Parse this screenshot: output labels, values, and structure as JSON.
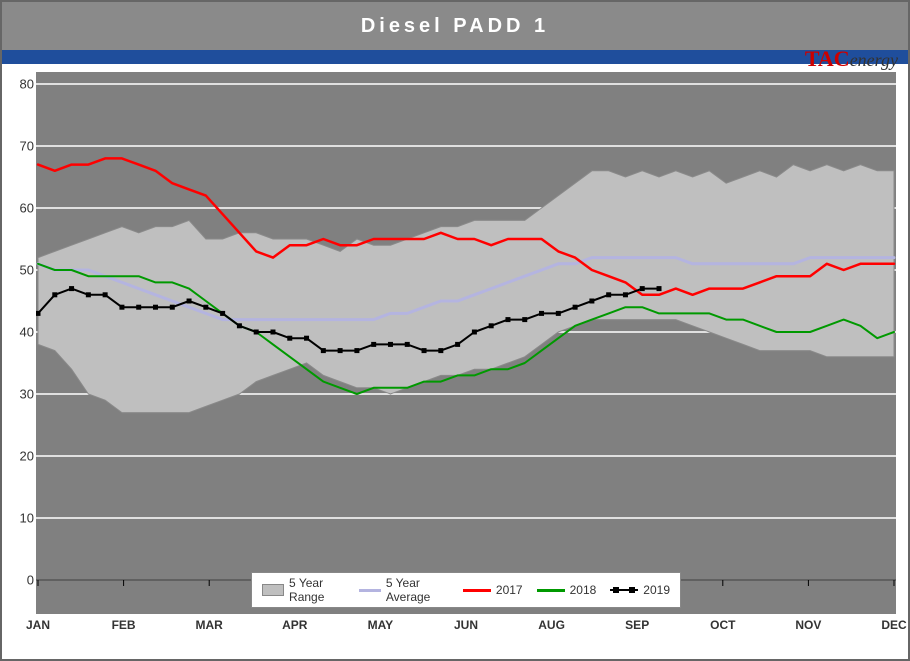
{
  "title": "Diesel PADD 1",
  "logo": {
    "red": "TAC",
    "rest": "energy"
  },
  "chart": {
    "type": "line-area",
    "background_color": "#808080",
    "grid_color": "#ffffff",
    "ylim": [
      0,
      80
    ],
    "ytick_step": 10,
    "yticks": [
      0,
      10,
      20,
      30,
      40,
      50,
      60,
      70,
      80
    ],
    "x_categories": [
      "JAN",
      "FEB",
      "MAR",
      "APR",
      "MAY",
      "JUN",
      "AUG",
      "SEP",
      "OCT",
      "NOV",
      "DEC"
    ],
    "n_weeks": 52,
    "range_upper": [
      52,
      53,
      54,
      55,
      56,
      57,
      56,
      57,
      57,
      58,
      55,
      55,
      56,
      56,
      55,
      55,
      55,
      54,
      53,
      55,
      54,
      54,
      55,
      56,
      57,
      57,
      58,
      58,
      58,
      58,
      60,
      62,
      64,
      66,
      66,
      65,
      66,
      65,
      66,
      65,
      66,
      64,
      65,
      66,
      65,
      67,
      66,
      67,
      66,
      67,
      66,
      66
    ],
    "range_lower": [
      38,
      37,
      34,
      30,
      29,
      27,
      27,
      27,
      27,
      27,
      28,
      29,
      30,
      32,
      33,
      34,
      35,
      33,
      32,
      31,
      31,
      30,
      31,
      32,
      33,
      33,
      34,
      34,
      35,
      36,
      38,
      40,
      41,
      42,
      42,
      42,
      42,
      42,
      42,
      41,
      40,
      39,
      38,
      37,
      37,
      37,
      37,
      36,
      36,
      36,
      36,
      36
    ],
    "avg": [
      51,
      50,
      50,
      50,
      49,
      48,
      47,
      46,
      45,
      44,
      43,
      42,
      42,
      42,
      42,
      42,
      42,
      42,
      42,
      42,
      42,
      43,
      43,
      44,
      45,
      45,
      46,
      47,
      48,
      49,
      50,
      51,
      51,
      52,
      52,
      52,
      52,
      52,
      52,
      51,
      51,
      51,
      51,
      51,
      51,
      51,
      52,
      52,
      52,
      52,
      52,
      52
    ],
    "s2017": [
      67,
      66,
      67,
      67,
      68,
      68,
      67,
      66,
      64,
      63,
      62,
      59,
      56,
      53,
      52,
      54,
      54,
      55,
      54,
      54,
      55,
      55,
      55,
      55,
      56,
      55,
      55,
      54,
      55,
      55,
      55,
      53,
      52,
      50,
      49,
      48,
      46,
      46,
      47,
      46,
      47,
      47,
      47,
      48,
      49,
      49,
      49,
      51,
      50,
      51,
      51,
      51
    ],
    "s2018": [
      51,
      50,
      50,
      49,
      49,
      49,
      49,
      48,
      48,
      47,
      45,
      43,
      41,
      40,
      38,
      36,
      34,
      32,
      31,
      30,
      31,
      31,
      31,
      32,
      32,
      33,
      33,
      34,
      34,
      35,
      37,
      39,
      41,
      42,
      43,
      44,
      44,
      43,
      43,
      43,
      43,
      42,
      42,
      41,
      40,
      40,
      40,
      41,
      42,
      41,
      39,
      40
    ],
    "s2019": [
      43,
      46,
      47,
      46,
      46,
      44,
      44,
      44,
      44,
      45,
      44,
      43,
      41,
      40,
      40,
      39,
      39,
      37,
      37,
      37,
      38,
      38,
      38,
      37,
      37,
      38,
      40,
      41,
      42,
      42,
      43,
      43,
      44,
      45,
      46,
      46,
      47,
      47
    ],
    "colors": {
      "range_fill": "#bfbfbf",
      "range_stroke": "#8a8a8a",
      "avg": "#b4b4e0",
      "s2017": "#ff0000",
      "s2018": "#009900",
      "s2019": "#000000"
    },
    "line_widths": {
      "avg": 3,
      "s2017": 2.5,
      "s2018": 2,
      "s2019": 2
    },
    "marker": {
      "s2019": {
        "shape": "square",
        "size": 5,
        "fill": "#000000"
      }
    }
  },
  "legend": {
    "items": [
      {
        "label": "5 Year Range",
        "type": "area"
      },
      {
        "label": "5 Year Average",
        "type": "line",
        "color": "#b4b4e0"
      },
      {
        "label": "2017",
        "type": "line",
        "color": "#ff0000"
      },
      {
        "label": "2018",
        "type": "line",
        "color": "#009900"
      },
      {
        "label": "2019",
        "type": "line-marker",
        "color": "#000000"
      }
    ]
  }
}
